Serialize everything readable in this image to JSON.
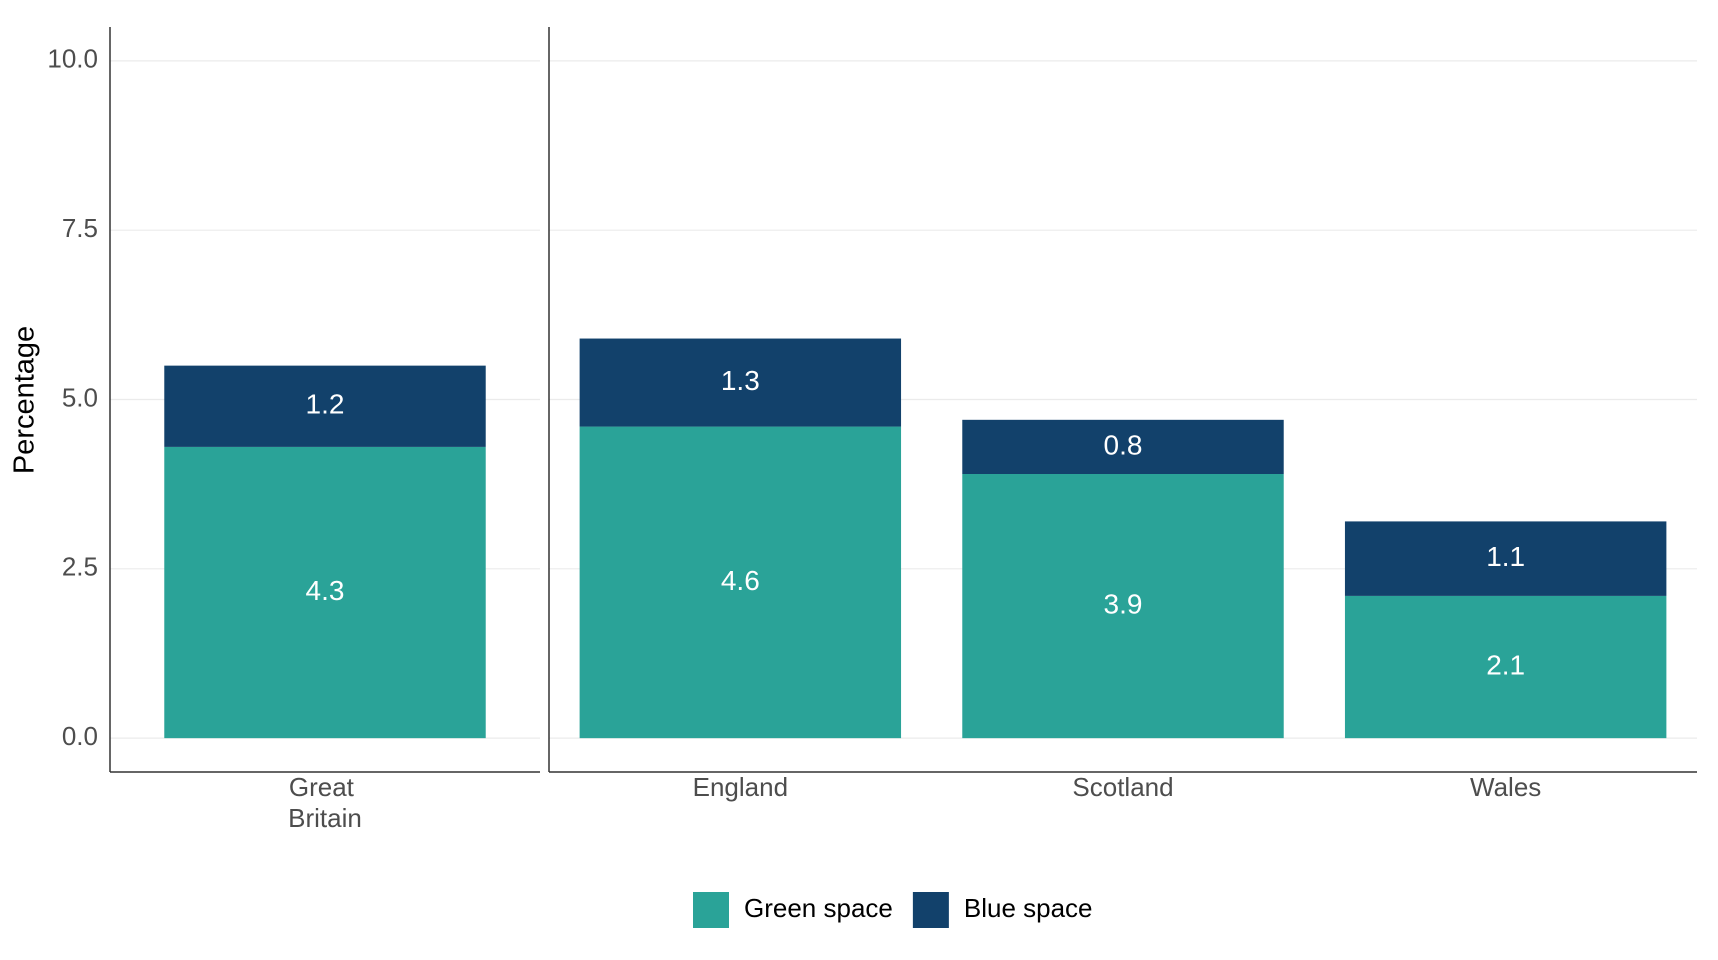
{
  "chart_data": {
    "type": "stacked_bar",
    "y_label": "Percentage",
    "categories": [
      "Great Britain",
      "England",
      "Scotland",
      "Wales"
    ],
    "series": [
      {
        "name": "Green space",
        "color": "#2aa398",
        "values": [
          4.3,
          4.6,
          3.9,
          2.1
        ]
      },
      {
        "name": "Blue space",
        "color": "#12416b",
        "values": [
          1.2,
          1.3,
          0.8,
          1.1
        ]
      }
    ],
    "ylim": [
      -0.5,
      10.5
    ],
    "yticks": [
      {
        "value": 0,
        "label": "0.0"
      },
      2.5,
      {
        "value": 5,
        "label": "5.0"
      },
      7.5,
      {
        "value": 10,
        "label": "10.0"
      }
    ],
    "grid": true,
    "legend": "bottom"
  }
}
